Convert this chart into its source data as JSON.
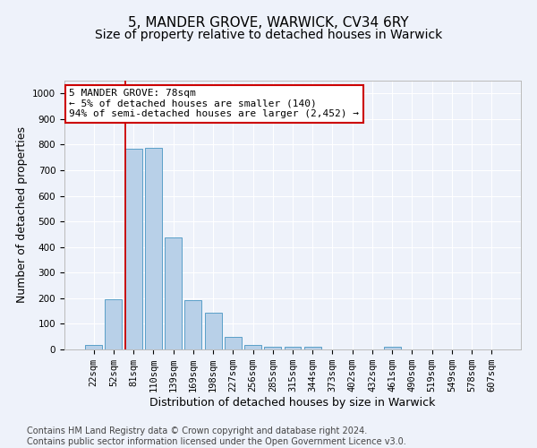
{
  "title": "5, MANDER GROVE, WARWICK, CV34 6RY",
  "subtitle": "Size of property relative to detached houses in Warwick",
  "xlabel": "Distribution of detached houses by size in Warwick",
  "ylabel": "Number of detached properties",
  "categories": [
    "22sqm",
    "52sqm",
    "81sqm",
    "110sqm",
    "139sqm",
    "169sqm",
    "198sqm",
    "227sqm",
    "256sqm",
    "285sqm",
    "315sqm",
    "344sqm",
    "373sqm",
    "402sqm",
    "432sqm",
    "461sqm",
    "490sqm",
    "519sqm",
    "549sqm",
    "578sqm",
    "607sqm"
  ],
  "values": [
    18,
    197,
    783,
    787,
    437,
    193,
    143,
    50,
    18,
    12,
    10,
    11,
    0,
    0,
    0,
    10,
    0,
    0,
    0,
    0,
    0
  ],
  "bar_color": "#b8d0e8",
  "bar_edge_color": "#5a9fc8",
  "background_color": "#eef2fa",
  "grid_color": "#ffffff",
  "red_line_index": 2,
  "annotation_line1": "5 MANDER GROVE: 78sqm",
  "annotation_line2": "← 5% of detached houses are smaller (140)",
  "annotation_line3": "94% of semi-detached houses are larger (2,452) →",
  "annotation_box_color": "#ffffff",
  "annotation_box_edge": "#cc0000",
  "ylim": [
    0,
    1050
  ],
  "yticks": [
    0,
    100,
    200,
    300,
    400,
    500,
    600,
    700,
    800,
    900,
    1000
  ],
  "footer": "Contains HM Land Registry data © Crown copyright and database right 2024.\nContains public sector information licensed under the Open Government Licence v3.0.",
  "title_fontsize": 11,
  "subtitle_fontsize": 10,
  "axis_label_fontsize": 9,
  "tick_fontsize": 7.5,
  "annotation_fontsize": 8,
  "footer_fontsize": 7
}
